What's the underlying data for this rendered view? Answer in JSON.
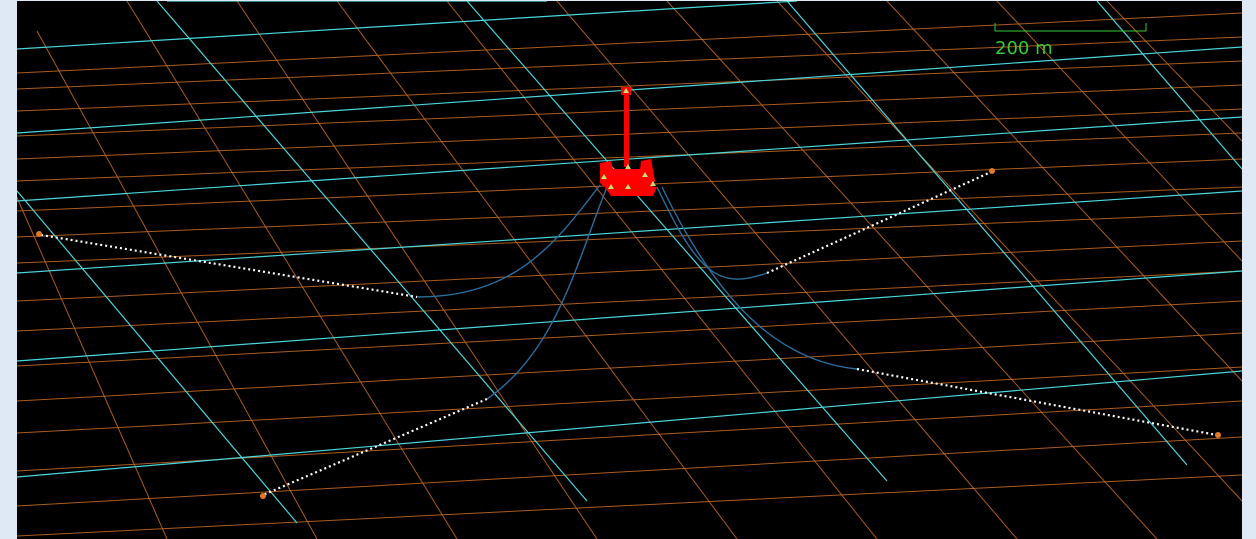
{
  "scale_bar": {
    "label": "200 m"
  },
  "colors": {
    "background": "#000000",
    "grid_orange": "#c96d22",
    "grid_cyan": "#4ad6dd",
    "vessel": "#ff0000",
    "vessel_markers": "#c8e06a",
    "mooring_line": "#2b6e9e",
    "mooring_seabed": "#ffffff",
    "anchor": "#e07a2a",
    "scale_bar": "#33cc33"
  },
  "icons": [
    "floating-vessel-icon",
    "anchor-icon",
    "scale-bar-icon"
  ]
}
